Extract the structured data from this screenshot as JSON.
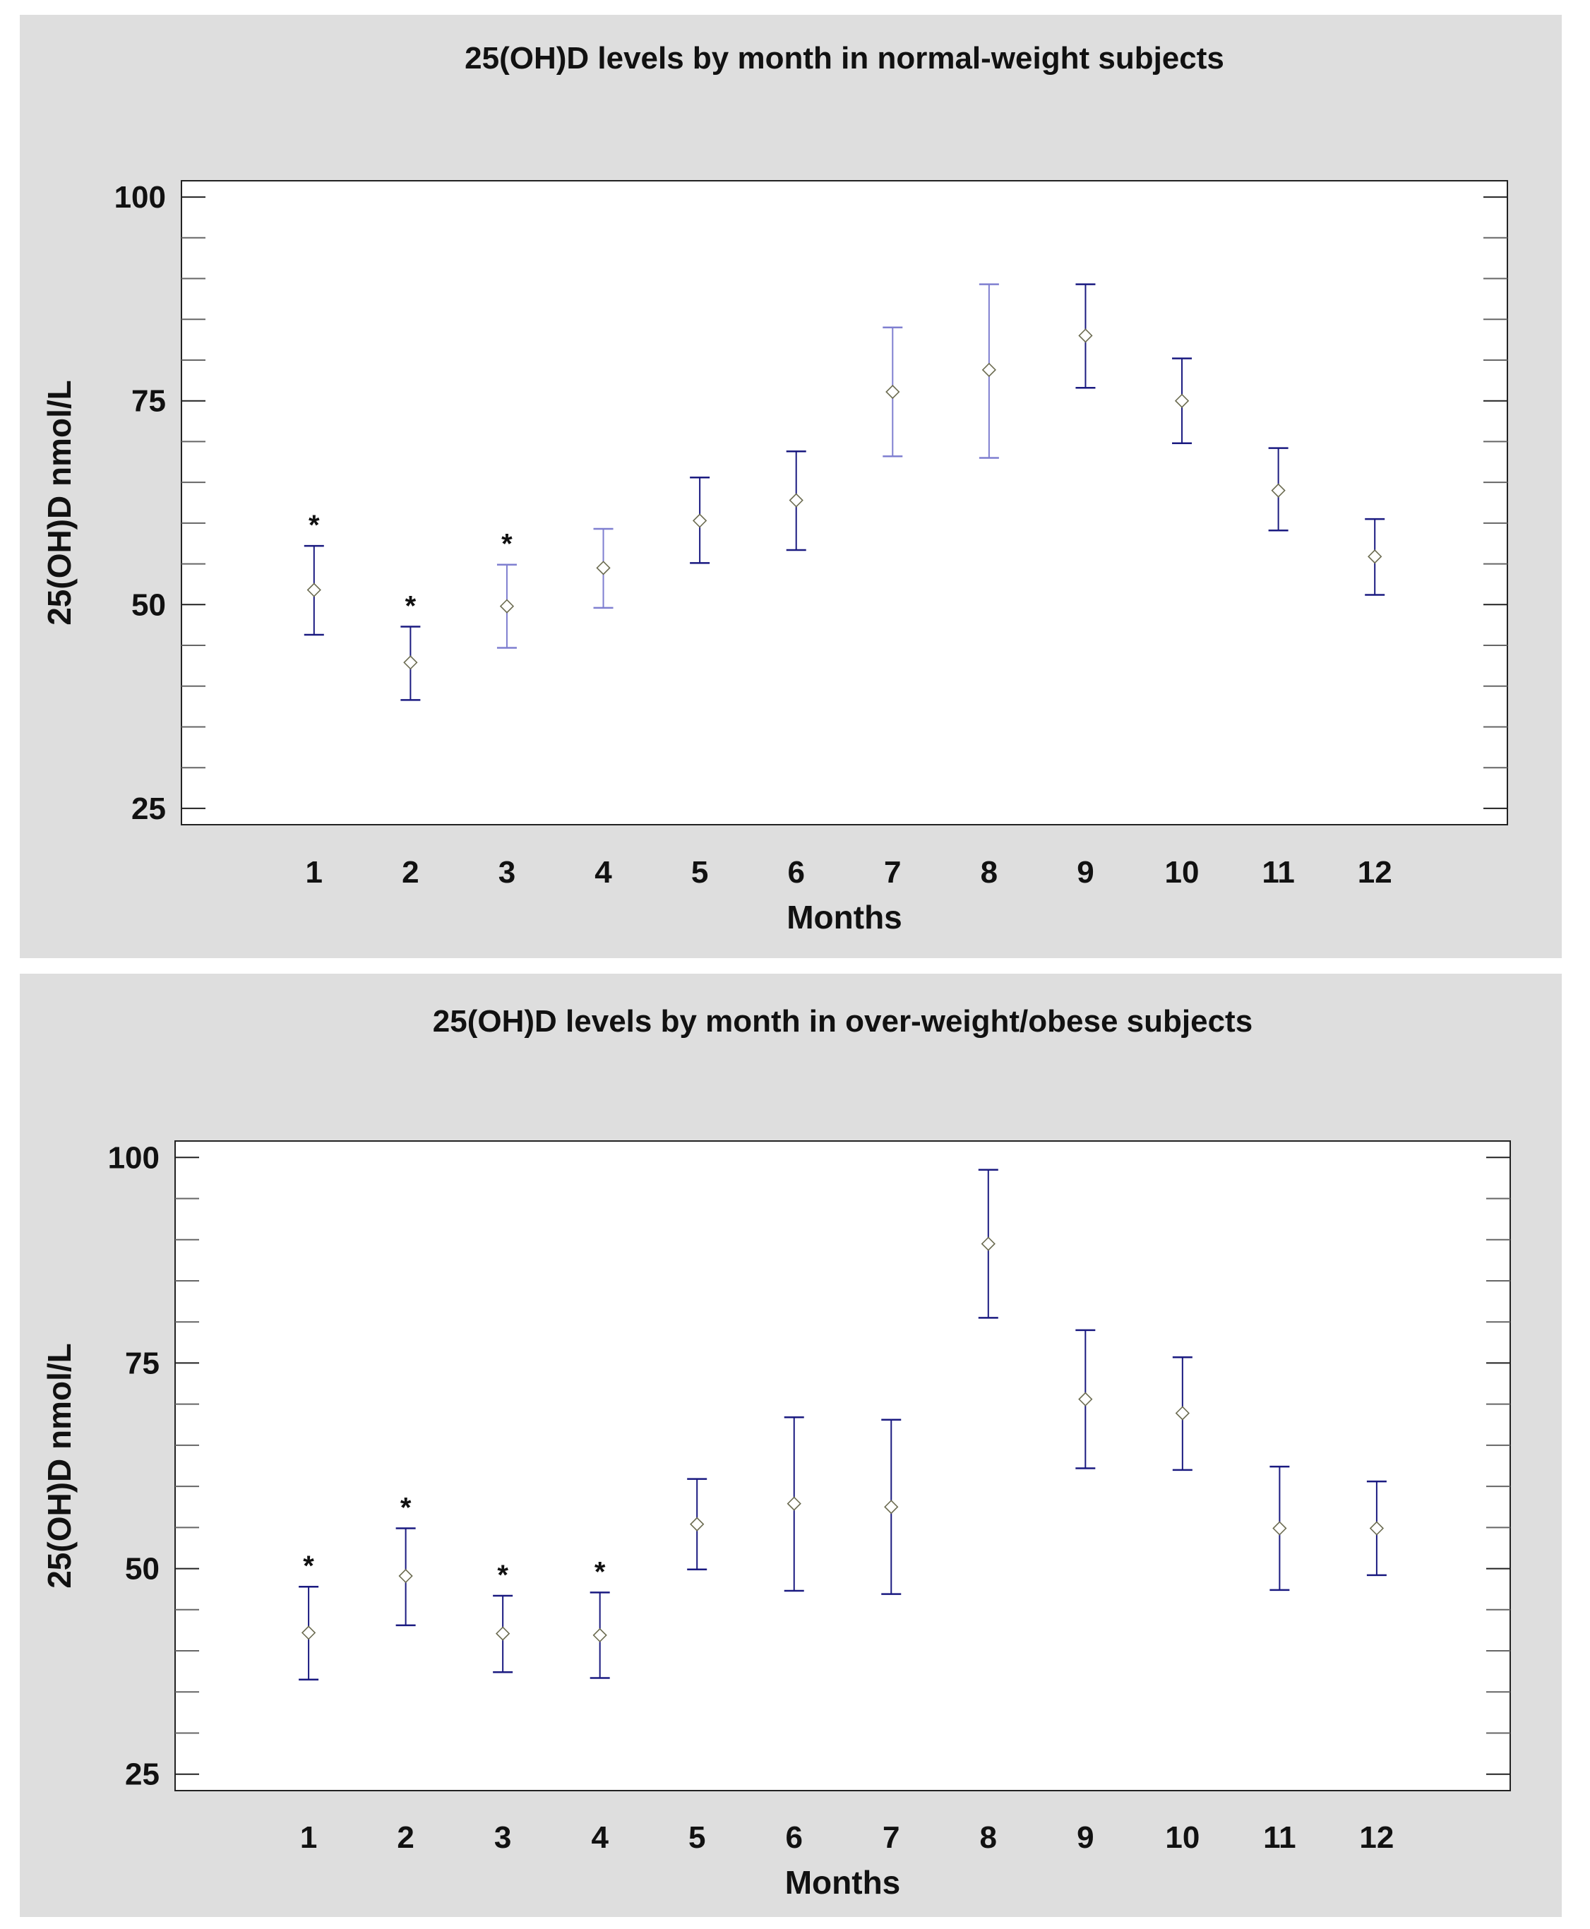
{
  "chart_data": [
    {
      "type": "errorbar",
      "title": "25(OH)D levels by month in normal-weight subjects",
      "xlabel": "Months",
      "ylabel": "25(OH)D nmol/L",
      "ylim": [
        23,
        102
      ],
      "yticks": [
        25,
        50,
        75,
        100
      ],
      "categories": [
        "1",
        "2",
        "3",
        "4",
        "5",
        "6",
        "7",
        "8",
        "9",
        "10",
        "11",
        "12"
      ],
      "points": [
        {
          "month": "1",
          "mean": 51.8,
          "lower": 46.3,
          "upper": 57.2,
          "star": "*"
        },
        {
          "month": "2",
          "mean": 42.9,
          "lower": 38.3,
          "upper": 47.3,
          "star": "*"
        },
        {
          "month": "3",
          "mean": 49.8,
          "lower": 44.7,
          "upper": 54.9,
          "star": "*"
        },
        {
          "month": "4",
          "mean": 54.5,
          "lower": 49.6,
          "upper": 59.3,
          "star": ""
        },
        {
          "month": "5",
          "mean": 60.3,
          "lower": 55.1,
          "upper": 65.6,
          "star": ""
        },
        {
          "month": "6",
          "mean": 62.8,
          "lower": 56.7,
          "upper": 68.8,
          "star": ""
        },
        {
          "month": "7",
          "mean": 76.1,
          "lower": 68.2,
          "upper": 84.0,
          "star": ""
        },
        {
          "month": "8",
          "mean": 78.8,
          "lower": 68.0,
          "upper": 89.3,
          "star": ""
        },
        {
          "month": "9",
          "mean": 83.0,
          "lower": 76.6,
          "upper": 89.3,
          "star": ""
        },
        {
          "month": "10",
          "mean": 75.0,
          "lower": 69.8,
          "upper": 80.2,
          "star": ""
        },
        {
          "month": "11",
          "mean": 64.0,
          "lower": 59.1,
          "upper": 69.2,
          "star": ""
        },
        {
          "month": "12",
          "mean": 55.9,
          "lower": 51.2,
          "upper": 60.5,
          "star": ""
        }
      ],
      "line_color": "#1a1a80",
      "light_line_color": "#7f7fd0",
      "marker_color": "#6b6b50"
    },
    {
      "type": "errorbar",
      "title": "25(OH)D levels by month in over-weight/obese subjects",
      "xlabel": "Months",
      "ylabel": "25(OH)D nmol/L",
      "ylim": [
        23,
        102
      ],
      "yticks": [
        25,
        50,
        75,
        100
      ],
      "categories": [
        "1",
        "2",
        "3",
        "4",
        "5",
        "6",
        "7",
        "8",
        "9",
        "10",
        "11",
        "12"
      ],
      "points": [
        {
          "month": "1",
          "mean": 42.2,
          "lower": 36.5,
          "upper": 47.8,
          "star": "*"
        },
        {
          "month": "2",
          "mean": 49.1,
          "lower": 43.1,
          "upper": 54.9,
          "star": "*"
        },
        {
          "month": "3",
          "mean": 42.1,
          "lower": 37.4,
          "upper": 46.7,
          "star": "*"
        },
        {
          "month": "4",
          "mean": 41.9,
          "lower": 36.7,
          "upper": 47.1,
          "star": "*"
        },
        {
          "month": "5",
          "mean": 55.4,
          "lower": 49.9,
          "upper": 60.9,
          "star": ""
        },
        {
          "month": "6",
          "mean": 57.9,
          "lower": 47.3,
          "upper": 68.4,
          "star": ""
        },
        {
          "month": "7",
          "mean": 57.5,
          "lower": 46.9,
          "upper": 68.1,
          "star": ""
        },
        {
          "month": "8",
          "mean": 89.5,
          "lower": 80.5,
          "upper": 98.5,
          "star": ""
        },
        {
          "month": "9",
          "mean": 70.6,
          "lower": 62.2,
          "upper": 79.0,
          "star": ""
        },
        {
          "month": "10",
          "mean": 68.9,
          "lower": 62.0,
          "upper": 75.7,
          "star": ""
        },
        {
          "month": "11",
          "mean": 54.9,
          "lower": 47.4,
          "upper": 62.4,
          "star": ""
        },
        {
          "month": "12",
          "mean": 54.9,
          "lower": 49.2,
          "upper": 60.6,
          "star": ""
        }
      ],
      "line_color": "#1a1a80",
      "light_line_color": "#4a4ab8",
      "marker_color": "#6b6b50"
    }
  ]
}
